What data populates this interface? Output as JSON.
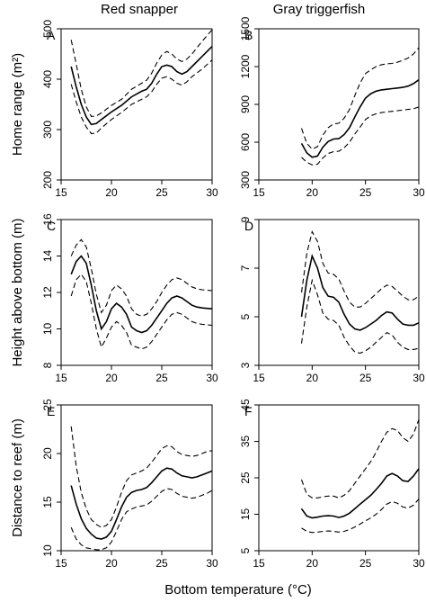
{
  "figure": {
    "column_titles": [
      "Red snapper",
      "Gray triggerfish"
    ],
    "x_axis_label": "Bottom temperature (°C)"
  },
  "chart_data": [
    {
      "id": "A",
      "letter": "A",
      "type": "line",
      "species": "Red snapper",
      "ylabel": "Home range (m²)",
      "xlim": [
        15,
        30
      ],
      "ylim": [
        200,
        500
      ],
      "xticks": [
        15,
        20,
        25,
        30
      ],
      "yticks": [
        200,
        300,
        400,
        500
      ],
      "series": [
        {
          "role": "fit",
          "x": [
            16,
            16.5,
            17,
            17.5,
            18,
            18.5,
            19,
            20,
            21,
            22,
            23,
            23.5,
            24,
            24.5,
            25,
            25.5,
            26,
            26.5,
            27,
            27.5,
            28,
            29,
            30
          ],
          "y": [
            425,
            385,
            350,
            325,
            310,
            312,
            320,
            335,
            348,
            365,
            376,
            380,
            392,
            410,
            425,
            428,
            425,
            415,
            410,
            415,
            425,
            445,
            465
          ]
        },
        {
          "role": "upper",
          "x": [
            16,
            16.5,
            17,
            17.5,
            18,
            18.5,
            19,
            20,
            21,
            22,
            23,
            23.5,
            24,
            24.5,
            25,
            25.5,
            26,
            26.5,
            27,
            27.5,
            28,
            29,
            30
          ],
          "y": [
            478,
            430,
            380,
            345,
            326,
            327,
            333,
            348,
            360,
            380,
            392,
            398,
            412,
            432,
            448,
            455,
            450,
            440,
            435,
            440,
            450,
            475,
            498
          ]
        },
        {
          "role": "lower",
          "x": [
            16,
            16.5,
            17,
            17.5,
            18,
            18.5,
            19,
            20,
            21,
            22,
            23,
            23.5,
            24,
            24.5,
            25,
            25.5,
            26,
            26.5,
            27,
            27.5,
            28,
            29,
            30
          ],
          "y": [
            390,
            355,
            325,
            305,
            292,
            293,
            303,
            320,
            334,
            350,
            360,
            365,
            375,
            390,
            402,
            405,
            400,
            392,
            388,
            395,
            405,
            420,
            438
          ]
        }
      ]
    },
    {
      "id": "B",
      "letter": "B",
      "type": "line",
      "species": "Gray triggerfish",
      "ylabel": "",
      "xlim": [
        15,
        30
      ],
      "ylim": [
        300,
        1500
      ],
      "xticks": [
        15,
        20,
        25,
        30
      ],
      "yticks": [
        300,
        600,
        900,
        1200,
        1500
      ],
      "series": [
        {
          "role": "fit",
          "x": [
            19,
            19.5,
            20,
            20.5,
            21,
            21.5,
            22,
            22.5,
            23,
            23.5,
            24,
            24.5,
            25,
            25.5,
            26,
            26.5,
            27,
            27.5,
            28,
            28.5,
            29,
            29.5,
            30
          ],
          "y": [
            590,
            515,
            480,
            490,
            560,
            605,
            625,
            628,
            660,
            715,
            800,
            880,
            950,
            985,
            1005,
            1015,
            1020,
            1025,
            1030,
            1035,
            1045,
            1065,
            1095
          ]
        },
        {
          "role": "upper",
          "x": [
            19,
            19.5,
            20,
            20.5,
            21,
            21.5,
            22,
            22.5,
            23,
            23.5,
            24,
            24.5,
            25,
            25.5,
            26,
            26.5,
            27,
            27.5,
            28,
            28.5,
            29,
            29.5,
            30
          ],
          "y": [
            710,
            590,
            545,
            565,
            655,
            715,
            745,
            750,
            790,
            860,
            970,
            1070,
            1145,
            1175,
            1200,
            1215,
            1222,
            1225,
            1235,
            1250,
            1268,
            1300,
            1350
          ]
        },
        {
          "role": "lower",
          "x": [
            19,
            19.5,
            20,
            20.5,
            21,
            21.5,
            22,
            22.5,
            23,
            23.5,
            24,
            24.5,
            25,
            25.5,
            26,
            26.5,
            27,
            27.5,
            28,
            28.5,
            29,
            29.5,
            30
          ],
          "y": [
            480,
            440,
            420,
            425,
            475,
            510,
            525,
            528,
            555,
            600,
            665,
            720,
            780,
            810,
            825,
            835,
            840,
            845,
            850,
            855,
            860,
            865,
            880
          ]
        }
      ]
    },
    {
      "id": "C",
      "letter": "C",
      "type": "line",
      "species": "Red snapper",
      "ylabel": "Height above bottom (m)",
      "xlim": [
        15,
        30
      ],
      "ylim": [
        8,
        16
      ],
      "xticks": [
        15,
        20,
        25,
        30
      ],
      "yticks": [
        8,
        10,
        12,
        14,
        16
      ],
      "series": [
        {
          "role": "fit",
          "x": [
            16,
            16.5,
            17,
            17.5,
            18,
            18.5,
            19,
            19.5,
            20,
            20.5,
            21,
            21.5,
            22,
            22.5,
            23,
            23.5,
            24,
            24.5,
            25,
            25.5,
            26,
            26.5,
            27,
            27.5,
            28,
            28.5,
            29,
            30
          ],
          "y": [
            13,
            13.7,
            14,
            13.6,
            12.4,
            11,
            10,
            10.4,
            11.1,
            11.4,
            11.2,
            10.8,
            10.1,
            9.9,
            9.8,
            9.9,
            10.2,
            10.6,
            11,
            11.4,
            11.7,
            11.8,
            11.7,
            11.5,
            11.3,
            11.2,
            11.15,
            11.1
          ]
        },
        {
          "role": "upper",
          "x": [
            16,
            16.5,
            17,
            17.5,
            18,
            18.5,
            19,
            19.5,
            20,
            20.5,
            21,
            21.5,
            22,
            22.5,
            23,
            23.5,
            24,
            24.5,
            25,
            25.5,
            26,
            26.5,
            27,
            27.5,
            28,
            28.5,
            29,
            30
          ],
          "y": [
            14,
            14.6,
            14.9,
            14.5,
            13.3,
            11.9,
            10.9,
            11.3,
            12.1,
            12.4,
            12.2,
            11.8,
            11.1,
            10.8,
            10.7,
            10.8,
            11.1,
            11.5,
            12,
            12.4,
            12.7,
            12.8,
            12.7,
            12.5,
            12.3,
            12.2,
            12.15,
            12.1
          ]
        },
        {
          "role": "lower",
          "x": [
            16,
            16.5,
            17,
            17.5,
            18,
            18.5,
            19,
            19.5,
            20,
            20.5,
            21,
            21.5,
            22,
            22.5,
            23,
            23.5,
            24,
            24.5,
            25,
            25.5,
            26,
            26.5,
            27,
            27.5,
            28,
            28.5,
            29,
            30
          ],
          "y": [
            11.8,
            12.7,
            13,
            12.6,
            11.4,
            10,
            9,
            9.5,
            10.1,
            10.4,
            10.2,
            9.8,
            9.1,
            9,
            8.9,
            9,
            9.3,
            9.7,
            10.1,
            10.5,
            10.8,
            10.9,
            10.8,
            10.6,
            10.4,
            10.3,
            10.25,
            10.2
          ]
        }
      ]
    },
    {
      "id": "D",
      "letter": "D",
      "type": "line",
      "species": "Gray triggerfish",
      "ylabel": "",
      "xlim": [
        15,
        30
      ],
      "ylim": [
        3,
        9
      ],
      "xticks": [
        15,
        20,
        25,
        30
      ],
      "yticks": [
        3,
        5,
        7,
        9
      ],
      "series": [
        {
          "role": "fit",
          "x": [
            19,
            19.5,
            20,
            20.5,
            21,
            21.5,
            22,
            22.5,
            23,
            23.5,
            24,
            24.5,
            25,
            25.5,
            26,
            26.5,
            27,
            27.5,
            28,
            28.5,
            29,
            29.5,
            30
          ],
          "y": [
            5,
            6.5,
            7.5,
            7,
            6.2,
            5.85,
            5.8,
            5.6,
            5.1,
            4.7,
            4.5,
            4.45,
            4.55,
            4.7,
            4.85,
            5.05,
            5.2,
            5.15,
            4.9,
            4.7,
            4.65,
            4.65,
            4.75
          ]
        },
        {
          "role": "upper",
          "x": [
            19,
            19.5,
            20,
            20.5,
            21,
            21.5,
            22,
            22.5,
            23,
            23.5,
            24,
            24.5,
            25,
            25.5,
            26,
            26.5,
            27,
            27.5,
            28,
            28.5,
            29,
            29.5,
            30
          ],
          "y": [
            6,
            7.6,
            8.5,
            8.1,
            7.2,
            6.8,
            6.75,
            6.55,
            6.05,
            5.6,
            5.4,
            5.4,
            5.55,
            5.75,
            5.95,
            6.15,
            6.3,
            6.25,
            6.05,
            5.85,
            5.7,
            5.7,
            5.85
          ]
        },
        {
          "role": "lower",
          "x": [
            19,
            19.5,
            20,
            20.5,
            21,
            21.5,
            22,
            22.5,
            23,
            23.5,
            24,
            24.5,
            25,
            25.5,
            26,
            26.5,
            27,
            27.5,
            28,
            28.5,
            29,
            29.5,
            30
          ],
          "y": [
            3.9,
            5.4,
            6.5,
            5.9,
            5.15,
            4.9,
            4.85,
            4.65,
            4.15,
            3.8,
            3.55,
            3.5,
            3.6,
            3.75,
            3.95,
            4.15,
            4.35,
            4.25,
            3.95,
            3.75,
            3.65,
            3.65,
            3.7
          ]
        }
      ]
    },
    {
      "id": "E",
      "letter": "E",
      "type": "line",
      "species": "Red snapper",
      "ylabel": "Distance to reef (m)",
      "xlim": [
        15,
        30
      ],
      "ylim": [
        10,
        25
      ],
      "xticks": [
        15,
        20,
        25,
        30
      ],
      "yticks": [
        10,
        15,
        20,
        25
      ],
      "series": [
        {
          "role": "fit",
          "x": [
            16,
            16.5,
            17,
            17.5,
            18,
            18.5,
            19,
            19.5,
            20,
            20.5,
            21,
            21.5,
            22,
            22.5,
            23,
            23.5,
            24,
            24.5,
            25,
            25.5,
            26,
            26.5,
            27,
            27.5,
            28,
            28.5,
            29,
            29.5,
            30
          ],
          "y": [
            16.7,
            14.8,
            13.3,
            12.3,
            11.7,
            11.3,
            11.2,
            11.4,
            12,
            13.2,
            14.5,
            15.5,
            16,
            16.2,
            16.3,
            16.5,
            17,
            17.6,
            18.2,
            18.5,
            18.4,
            18,
            17.7,
            17.6,
            17.5,
            17.6,
            17.8,
            18,
            18.2
          ]
        },
        {
          "role": "upper",
          "x": [
            16,
            16.5,
            17,
            17.5,
            18,
            18.5,
            19,
            19.5,
            20,
            20.5,
            21,
            21.5,
            22,
            22.5,
            23,
            23.5,
            24,
            24.5,
            25,
            25.5,
            26,
            26.5,
            27,
            27.5,
            28,
            28.5,
            29,
            29.5,
            30
          ],
          "y": [
            22.8,
            18.7,
            16,
            14.3,
            13.2,
            12.7,
            12.4,
            12.6,
            13.2,
            14.5,
            16,
            17.2,
            17.8,
            18,
            18.2,
            18.5,
            19.1,
            19.8,
            20.5,
            20.8,
            20.7,
            20.2,
            19.9,
            19.8,
            19.7,
            19.8,
            20,
            20.2,
            20.3
          ]
        },
        {
          "role": "lower",
          "x": [
            16,
            16.5,
            17,
            17.5,
            18,
            18.5,
            19,
            19.5,
            20,
            20.5,
            21,
            21.5,
            22,
            22.5,
            23,
            23.5,
            24,
            24.5,
            25,
            25.5,
            26,
            26.5,
            27,
            27.5,
            28,
            28.5,
            29,
            29.5,
            30
          ],
          "y": [
            12.4,
            11.2,
            10.6,
            10.3,
            10.2,
            10.1,
            10.1,
            10.3,
            10.9,
            12,
            13.2,
            14,
            14.3,
            14.5,
            14.6,
            14.7,
            15.1,
            15.6,
            16.1,
            16.4,
            16.3,
            15.9,
            15.6,
            15.5,
            15.4,
            15.5,
            15.7,
            15.9,
            16.2
          ]
        }
      ]
    },
    {
      "id": "F",
      "letter": "F",
      "type": "line",
      "species": "Gray triggerfish",
      "ylabel": "",
      "xlim": [
        15,
        30
      ],
      "ylim": [
        5,
        45
      ],
      "xticks": [
        15,
        20,
        25,
        30
      ],
      "yticks": [
        5,
        15,
        25,
        35,
        45
      ],
      "series": [
        {
          "role": "fit",
          "x": [
            19,
            19.5,
            20,
            20.5,
            21,
            21.5,
            22,
            22.5,
            23,
            23.5,
            24,
            24.5,
            25,
            25.5,
            26,
            26.5,
            27,
            27.5,
            28,
            28.5,
            29,
            29.5,
            30
          ],
          "y": [
            16.5,
            14.5,
            14,
            14.2,
            14.5,
            14.6,
            14.5,
            14.1,
            14.5,
            15.3,
            16.5,
            17.8,
            19,
            20.2,
            21.8,
            23.5,
            25.5,
            26.2,
            25.5,
            24.2,
            24,
            25.5,
            27.5
          ]
        },
        {
          "role": "upper",
          "x": [
            19,
            19.5,
            20,
            20.5,
            21,
            21.5,
            22,
            22.5,
            23,
            23.5,
            24,
            24.5,
            25,
            25.5,
            26,
            26.5,
            27,
            27.5,
            28,
            28.5,
            29,
            29.5,
            30
          ],
          "y": [
            24.5,
            20.5,
            19.5,
            19.5,
            19.8,
            20,
            20,
            19.5,
            20.2,
            21.5,
            23.5,
            25.5,
            27.5,
            29.5,
            32,
            35,
            37.5,
            38.5,
            38,
            36,
            35,
            37,
            41
          ]
        },
        {
          "role": "lower",
          "x": [
            19,
            19.5,
            20,
            20.5,
            21,
            21.5,
            22,
            22.5,
            23,
            23.5,
            24,
            24.5,
            25,
            25.5,
            26,
            26.5,
            27,
            27.5,
            28,
            28.5,
            29,
            29.5,
            30
          ],
          "y": [
            11.2,
            10.3,
            10,
            10.1,
            10.3,
            10.4,
            10.3,
            10.1,
            10.3,
            10.8,
            11.5,
            12.3,
            13.2,
            14,
            15,
            16.3,
            17.8,
            18.5,
            18,
            17,
            16.7,
            17.5,
            19.2
          ]
        }
      ]
    }
  ]
}
